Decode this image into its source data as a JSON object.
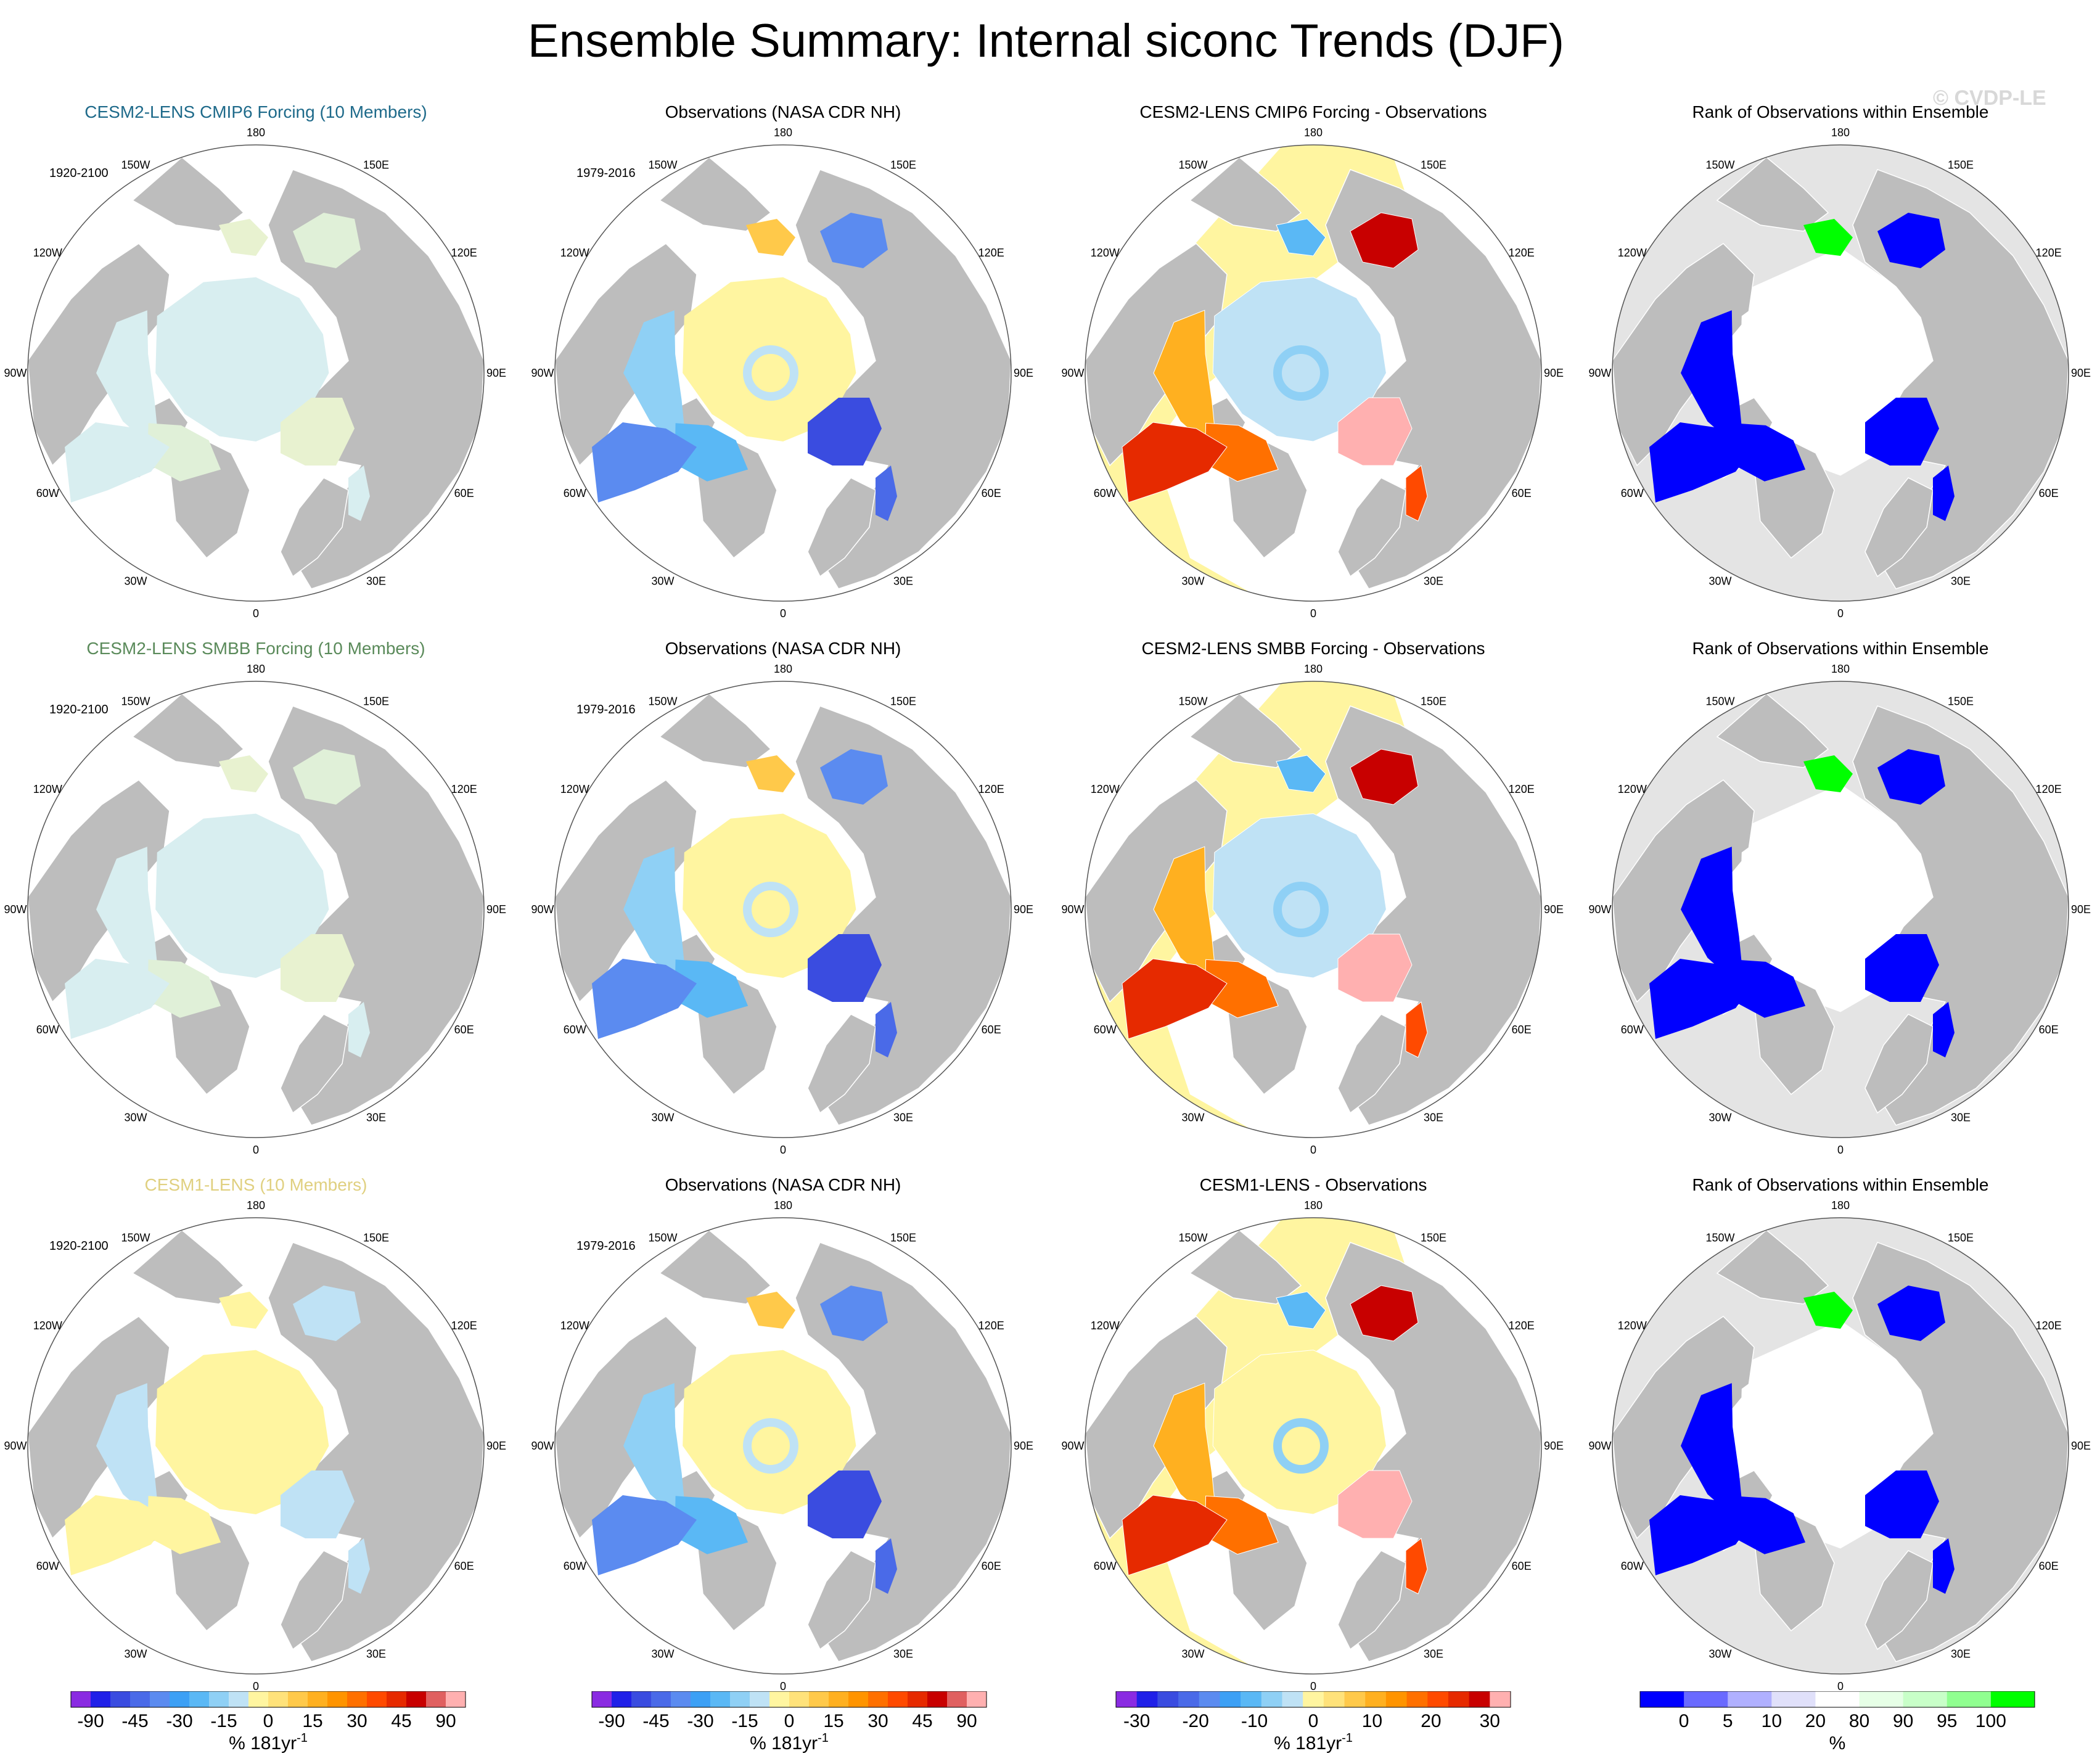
{
  "title": "Ensemble Summary: Internal siconc Trends (DJF)",
  "watermark": "© CVDP-LE",
  "lon_labels": [
    "180",
    "150E",
    "120E",
    "90E",
    "60E",
    "30E",
    "0",
    "30W",
    "60W",
    "90W",
    "120W",
    "150W"
  ],
  "colors": {
    "land": "#bdbdbd",
    "ocean": "#ffffff",
    "diverge": [
      "#8a2be2",
      "#2020e8",
      "#3a4ce0",
      "#4a6ae8",
      "#5b8bf0",
      "#3ca0f5",
      "#5ab8f5",
      "#8fd0f5",
      "#bfe2f5",
      "#fff5a0",
      "#ffe27a",
      "#ffc94a",
      "#ffb020",
      "#ff9400",
      "#ff7000",
      "#ff4a00",
      "#e62a00",
      "#c80000",
      "#e06060",
      "#ffb0b0"
    ],
    "diff": [
      "#8a2be2",
      "#2020e8",
      "#3a4ce0",
      "#4a6ae8",
      "#5b8bf0",
      "#3ca0f5",
      "#5ab8f5",
      "#8fd0f5",
      "#bfe2f5",
      "#fff5a0",
      "#ffe27a",
      "#ffc94a",
      "#ffb020",
      "#ff9400",
      "#ff7000",
      "#ff4a00",
      "#e62a00",
      "#c80000",
      "#ffb0b0"
    ],
    "rank": [
      "#0000ff",
      "#6a6aff",
      "#b0b0ff",
      "#e0e0fa",
      "#ffffff",
      "#e6ffe6",
      "#c8ffc8",
      "#90ff90",
      "#00ff00"
    ]
  },
  "rows": [
    {
      "panels": [
        {
          "title": "CESM2-LENS CMIP6 Forcing (10 Members)",
          "title_color": "#1e6a8a",
          "period": "1920-2100",
          "kind": "model"
        },
        {
          "title": "Observations (NASA CDR NH)",
          "title_color": "#000000",
          "period": "1979-2016",
          "kind": "obs"
        },
        {
          "title": "CESM2-LENS CMIP6 Forcing - Observations",
          "title_color": "#000000",
          "period": "",
          "kind": "diff"
        },
        {
          "title": "Rank of Observations within Ensemble",
          "title_color": "#000000",
          "period": "",
          "kind": "rank"
        }
      ]
    },
    {
      "panels": [
        {
          "title": "CESM2-LENS SMBB Forcing (10 Members)",
          "title_color": "#5a8a5a",
          "period": "1920-2100",
          "kind": "model"
        },
        {
          "title": "Observations (NASA CDR NH)",
          "title_color": "#000000",
          "period": "1979-2016",
          "kind": "obs"
        },
        {
          "title": "CESM2-LENS SMBB Forcing - Observations",
          "title_color": "#000000",
          "period": "",
          "kind": "diff"
        },
        {
          "title": "Rank of Observations within Ensemble",
          "title_color": "#000000",
          "period": "",
          "kind": "rank"
        }
      ]
    },
    {
      "panels": [
        {
          "title": "CESM1-LENS (10 Members)",
          "title_color": "#e0d080",
          "period": "1920-2100",
          "kind": "model1"
        },
        {
          "title": "Observations (NASA CDR NH)",
          "title_color": "#000000",
          "period": "1979-2016",
          "kind": "obs"
        },
        {
          "title": "CESM1-LENS - Observations",
          "title_color": "#000000",
          "period": "",
          "kind": "diff1"
        },
        {
          "title": "Rank of Observations within Ensemble",
          "title_color": "#000000",
          "period": "",
          "kind": "rank1"
        }
      ]
    }
  ],
  "chart_data": {
    "type": "heatmap",
    "projection": "north polar stereographic",
    "variable": "siconc",
    "season": "DJF",
    "colorbars": [
      {
        "name": "model-trend",
        "ticks": [
          "-90",
          "-45",
          "-30",
          "-15",
          "0",
          "15",
          "30",
          "45",
          "90"
        ],
        "unit": "% 181yr",
        "exponent": "-1",
        "palette": "diverge"
      },
      {
        "name": "obs-trend",
        "ticks": [
          "-90",
          "-45",
          "-30",
          "-15",
          "0",
          "15",
          "30",
          "45",
          "90"
        ],
        "unit": "% 181yr",
        "exponent": "-1",
        "palette": "diverge"
      },
      {
        "name": "difference",
        "ticks": [
          "-30",
          "-20",
          "-10",
          "0",
          "10",
          "20",
          "30"
        ],
        "unit": "% 181yr",
        "exponent": "-1",
        "palette": "diff"
      },
      {
        "name": "rank",
        "ticks": [
          "0",
          "5",
          "10",
          "20",
          "80",
          "90",
          "95",
          "100"
        ],
        "unit": "%",
        "exponent": "",
        "palette": "rank"
      }
    ]
  }
}
